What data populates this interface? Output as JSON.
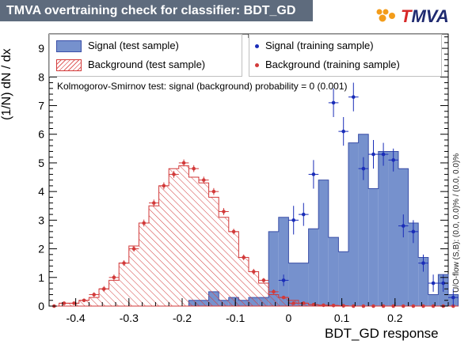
{
  "title": "TMVA overtraining check for classifier: BDT_GD",
  "logo": {
    "first": "T",
    "rest": "MVA"
  },
  "ks_text": "Kolmogorov-Smirnov test: signal (background) probability =     0 (0.001)",
  "overflow_text": "U/O-flow (S,B): (0.0, 0.0)% / (0.0, 0.0)%",
  "legend": {
    "sig_test": "Signal (test sample)",
    "bkg_test": "Background (test sample)",
    "sig_train": "Signal (training sample)",
    "bkg_train": "Background (training sample)"
  },
  "colors": {
    "signal_fill": "#7691cd",
    "signal_line": "#3a4fa8",
    "background": "#d23a3a",
    "signal_marker": "#1a2db8"
  },
  "chart_data": {
    "type": "histogram",
    "xlabel": "BDT_GD response",
    "ylabel": "(1/N) dN / dx",
    "xlim": [
      -0.45,
      0.3
    ],
    "ylim": [
      0,
      9.5
    ],
    "xticks": [
      -0.4,
      -0.3,
      -0.2,
      -0.1,
      0,
      0.1,
      0.2
    ],
    "yticks": [
      0,
      1,
      2,
      3,
      4,
      5,
      6,
      7,
      8,
      9
    ],
    "bin_edges_start": -0.45,
    "bin_width": 0.01875,
    "series": [
      {
        "name": "Signal (test sample)",
        "style": "filled",
        "values": [
          0,
          0,
          0,
          0,
          0,
          0,
          0,
          0,
          0,
          0,
          0,
          0,
          0,
          0,
          0.2,
          0.2,
          0.5,
          0.2,
          0.3,
          0.2,
          0.3,
          0.3,
          2.6,
          3.1,
          1.5,
          1.5,
          2.7,
          4.4,
          2.4,
          1.9,
          5.7,
          6.0,
          4.1,
          5.4,
          5.4,
          4.8,
          2.9,
          1.7,
          0.4,
          1.1,
          0.4
        ]
      },
      {
        "name": "Background (test sample)",
        "style": "hatched",
        "values": [
          0,
          0.1,
          0.1,
          0.2,
          0.3,
          0.6,
          0.9,
          1.5,
          2.1,
          2.9,
          3.5,
          4.2,
          4.8,
          4.9,
          4.5,
          4.3,
          3.8,
          3.1,
          2.6,
          1.7,
          1.2,
          0.8,
          0.4,
          0.3,
          0.2,
          0.1,
          0.05,
          0.03,
          0.02,
          0.01,
          0,
          0,
          0,
          0,
          0,
          0,
          0,
          0,
          0,
          0,
          0
        ]
      },
      {
        "name": "Signal (training sample)",
        "style": "points",
        "values": [
          null,
          null,
          null,
          null,
          null,
          null,
          null,
          null,
          null,
          null,
          null,
          null,
          null,
          null,
          null,
          null,
          null,
          null,
          null,
          null,
          null,
          null,
          null,
          0.9,
          3.0,
          3.2,
          4.6,
          null,
          7.1,
          6.1,
          7.3,
          4.8,
          5.3,
          5.3,
          5.1,
          2.8,
          2.6,
          1.5,
          0.8,
          0.8,
          0.3
        ],
        "errors": [
          0,
          0,
          0,
          0,
          0,
          0,
          0,
          0,
          0,
          0,
          0,
          0,
          0,
          0,
          0,
          0,
          0,
          0,
          0,
          0,
          0,
          0,
          0,
          0.2,
          0.5,
          0.4,
          0.5,
          0,
          0.5,
          0.5,
          0.5,
          0.4,
          0.5,
          0.4,
          0.4,
          0.4,
          0.4,
          0.3,
          0.3,
          0.3,
          0.3
        ]
      },
      {
        "name": "Background (training sample)",
        "style": "points",
        "values": [
          0,
          0.1,
          0.1,
          0.2,
          0.4,
          0.6,
          1.0,
          1.5,
          2.0,
          2.9,
          3.6,
          4.2,
          4.6,
          5.0,
          4.8,
          4.4,
          4.0,
          3.3,
          2.6,
          1.7,
          1.2,
          0.9,
          0.5,
          0.3,
          0.1,
          0.1,
          0.05,
          0.03,
          0.02,
          0.01,
          0,
          0,
          0,
          0,
          0,
          0,
          0,
          0,
          0,
          0,
          0
        ],
        "errors": [
          0,
          0.05,
          0.05,
          0.05,
          0.08,
          0.1,
          0.1,
          0.1,
          0.1,
          0.12,
          0.12,
          0.12,
          0.12,
          0.12,
          0.12,
          0.12,
          0.12,
          0.12,
          0.1,
          0.1,
          0.1,
          0.08,
          0.08,
          0.05,
          0.05,
          0.05,
          0.03,
          0.03,
          0.02,
          0.01,
          0,
          0,
          0,
          0,
          0,
          0,
          0,
          0,
          0,
          0,
          0
        ]
      }
    ]
  }
}
